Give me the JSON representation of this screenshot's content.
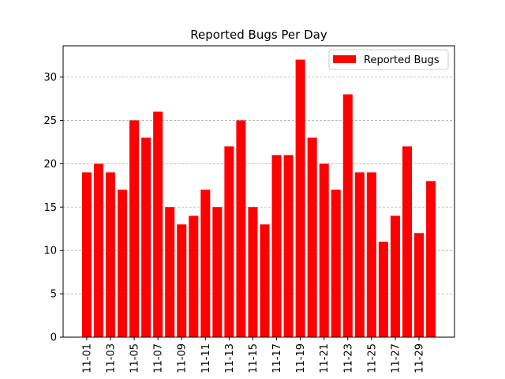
{
  "chart_data": {
    "type": "bar",
    "title": "Reported Bugs Per Day",
    "xlabel": "",
    "ylabel": "",
    "categories": [
      "11-01",
      "11-02",
      "11-03",
      "11-04",
      "11-05",
      "11-06",
      "11-07",
      "11-08",
      "11-09",
      "11-10",
      "11-11",
      "11-12",
      "11-13",
      "11-14",
      "11-15",
      "11-16",
      "11-17",
      "11-18",
      "11-19",
      "11-20",
      "11-21",
      "11-22",
      "11-23",
      "11-24",
      "11-25",
      "11-26",
      "11-27",
      "11-28",
      "11-29",
      "11-30"
    ],
    "x_tick_labels": [
      "11-01",
      "11-03",
      "11-05",
      "11-07",
      "11-09",
      "11-11",
      "11-13",
      "11-15",
      "11-17",
      "11-19",
      "11-21",
      "11-23",
      "11-25",
      "11-27",
      "11-29"
    ],
    "series": [
      {
        "name": "Reported Bugs",
        "color": "#ff0000",
        "values": [
          19,
          20,
          19,
          17,
          25,
          23,
          26,
          15,
          13,
          14,
          17,
          15,
          22,
          25,
          15,
          13,
          21,
          21,
          32,
          23,
          20,
          17,
          28,
          19,
          19,
          11,
          14,
          22,
          12,
          18
        ]
      }
    ],
    "ylim": [
      0,
      33.6
    ],
    "y_ticks": [
      0,
      5,
      10,
      15,
      20,
      25,
      30
    ],
    "grid": "y-dashed",
    "legend_position": "top-right"
  }
}
